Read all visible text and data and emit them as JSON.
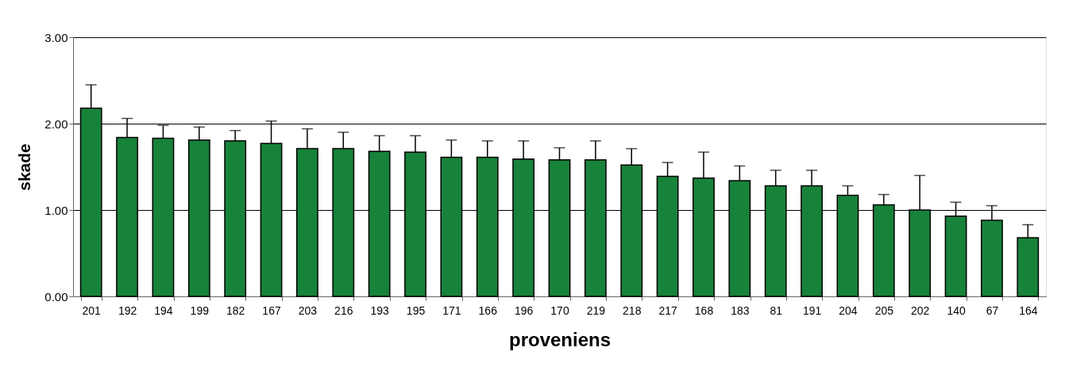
{
  "chart_data": {
    "type": "bar",
    "xlabel": "proveniens",
    "ylabel": "skade",
    "categories": [
      "201",
      "192",
      "194",
      "199",
      "182",
      "167",
      "203",
      "216",
      "193",
      "195",
      "171",
      "166",
      "196",
      "170",
      "219",
      "218",
      "217",
      "168",
      "183",
      "81",
      "191",
      "204",
      "205",
      "202",
      "140",
      "67",
      "164"
    ],
    "series": [
      {
        "color": "#17823a",
        "values": [
          2.18,
          1.84,
          1.83,
          1.81,
          1.8,
          1.77,
          1.71,
          1.71,
          1.68,
          1.67,
          1.61,
          1.61,
          1.59,
          1.58,
          1.58,
          1.52,
          1.39,
          1.37,
          1.34,
          1.28,
          1.28,
          1.17,
          1.06,
          1.0,
          0.93,
          0.88,
          0.68
        ],
        "errors": [
          [
            2.18,
            2.45
          ],
          [
            1.84,
            2.06
          ],
          [
            1.83,
            1.98
          ],
          [
            1.81,
            1.96
          ],
          [
            1.8,
            1.92
          ],
          [
            1.77,
            2.03
          ],
          [
            1.71,
            1.94
          ],
          [
            1.71,
            1.9
          ],
          [
            1.68,
            1.86
          ],
          [
            1.67,
            1.86
          ],
          [
            1.61,
            1.81
          ],
          [
            1.61,
            1.8
          ],
          [
            1.59,
            1.8
          ],
          [
            1.58,
            1.72
          ],
          [
            1.58,
            1.8
          ],
          [
            1.52,
            1.71
          ],
          [
            1.39,
            1.55
          ],
          [
            1.37,
            1.67
          ],
          [
            1.34,
            1.51
          ],
          [
            1.28,
            1.46
          ],
          [
            1.28,
            1.46
          ],
          [
            1.17,
            1.28
          ],
          [
            1.06,
            1.18
          ],
          [
            1.0,
            1.4
          ],
          [
            0.93,
            1.09
          ],
          [
            0.88,
            1.05
          ],
          [
            0.68,
            0.83
          ]
        ]
      }
    ],
    "ylim": [
      0,
      3
    ],
    "yticks": [
      {
        "value": 0,
        "label": "0.00"
      },
      {
        "value": 1,
        "label": "1.00"
      },
      {
        "value": 2,
        "label": "2.00"
      },
      {
        "value": 3,
        "label": "3.00"
      }
    ],
    "grid": "y"
  }
}
